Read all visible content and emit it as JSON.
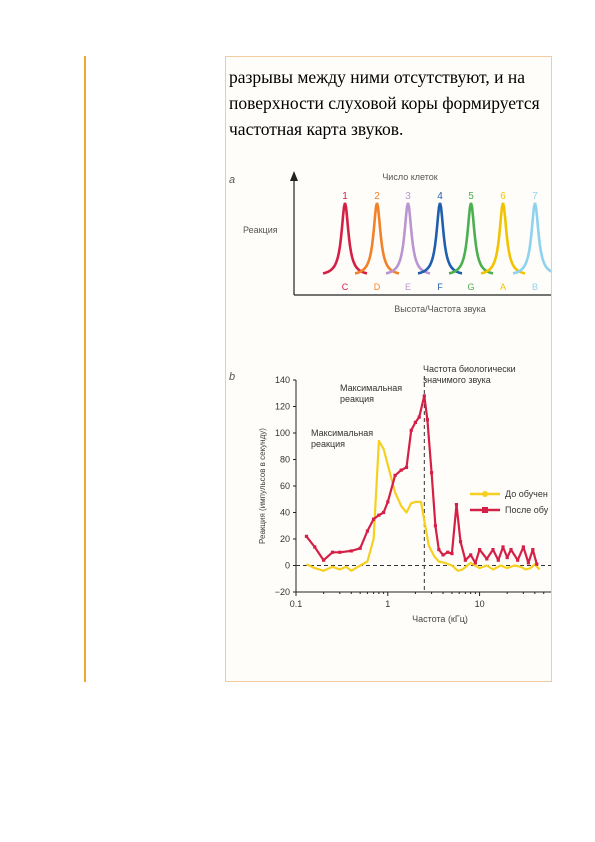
{
  "paragraph": "разрывы между ними отсутствуют, и на поверхности слуховой коры формируется частотная карта звуков.",
  "chart_data": [
    {
      "type": "line",
      "panel_label": "a",
      "top_label": "Число клеток",
      "ylabel": "Реакция",
      "xlabel": "Высота/Частота звука",
      "series": [
        {
          "name": "1",
          "note": "C",
          "color": "#d42046"
        },
        {
          "name": "2",
          "note": "D",
          "color": "#f0822a"
        },
        {
          "name": "3",
          "note": "E",
          "color": "#b996d2"
        },
        {
          "name": "4",
          "note": "F",
          "color": "#1f5fae"
        },
        {
          "name": "5",
          "note": "G",
          "color": "#4caf50"
        },
        {
          "name": "6",
          "note": "A",
          "color": "#f2c300"
        },
        {
          "name": "7",
          "note": "B",
          "color": "#8fd2ee"
        }
      ]
    },
    {
      "type": "line",
      "panel_label": "b",
      "xlabel": "Частота (кГц)",
      "ylabel": "Реакция (импульсов в секунду)",
      "xscale": "log",
      "xlim": [
        0.1,
        60
      ],
      "ylim": [
        -20,
        140
      ],
      "yticks": [
        -20,
        0,
        20,
        40,
        60,
        80,
        100,
        120,
        140
      ],
      "xticks": [
        {
          "value": 0.1,
          "label": "0.1"
        },
        {
          "value": 1,
          "label": "1"
        },
        {
          "value": 10,
          "label": "10"
        }
      ],
      "baseline": 0,
      "marker_x": 2.5,
      "annotations": [
        {
          "text": [
            "Частота биологически",
            "значимого звука"
          ],
          "x": 2.5,
          "y": 128
        },
        {
          "text": [
            "Максимальная",
            "реакция"
          ],
          "x": 2.5,
          "y": 128
        },
        {
          "text": [
            "Максимальная",
            "реакция"
          ],
          "x": 0.8,
          "y": 94
        }
      ],
      "legend": [
        "До обучен",
        "После обу"
      ],
      "legend_position": "right",
      "series": [
        {
          "name": "До обучен",
          "color": "#f5d020",
          "x": [
            0.13,
            0.16,
            0.2,
            0.25,
            0.3,
            0.35,
            0.4,
            0.5,
            0.6,
            0.7,
            0.8,
            0.9,
            1.0,
            1.2,
            1.4,
            1.6,
            1.8,
            2.0,
            2.3,
            2.5,
            2.8,
            3.2,
            3.6,
            4.2,
            5.0,
            5.8,
            6.5,
            8.0,
            10,
            12,
            14,
            17,
            20,
            24,
            28,
            32,
            36,
            40,
            45
          ],
          "y": [
            1,
            -2,
            -4,
            -1,
            -3,
            -1,
            -4,
            0,
            3,
            20,
            94,
            88,
            76,
            55,
            45,
            40,
            47,
            48,
            48,
            34,
            15,
            7,
            3,
            2,
            0,
            -4,
            -3,
            2,
            -2,
            0,
            -3,
            0,
            -2,
            0,
            -1,
            -3,
            -2,
            1,
            -3
          ]
        },
        {
          "name": "После обу",
          "color": "#d42046",
          "x": [
            0.13,
            0.16,
            0.2,
            0.25,
            0.3,
            0.4,
            0.5,
            0.6,
            0.7,
            0.8,
            0.9,
            1.0,
            1.2,
            1.4,
            1.6,
            1.8,
            2.0,
            2.2,
            2.5,
            2.7,
            3.0,
            3.3,
            3.6,
            4.0,
            4.5,
            5.0,
            5.6,
            6.2,
            7.0,
            8.0,
            9.0,
            10,
            12,
            14,
            16,
            18,
            20,
            22,
            26,
            30,
            34,
            38,
            42
          ],
          "y": [
            22,
            14,
            4,
            10,
            10,
            11,
            13,
            26,
            35,
            38,
            40,
            48,
            68,
            72,
            74,
            102,
            108,
            112,
            128,
            110,
            70,
            30,
            12,
            8,
            10,
            9,
            46,
            18,
            4,
            8,
            2,
            12,
            5,
            12,
            4,
            14,
            6,
            12,
            4,
            14,
            2,
            12,
            1
          ]
        }
      ]
    }
  ]
}
